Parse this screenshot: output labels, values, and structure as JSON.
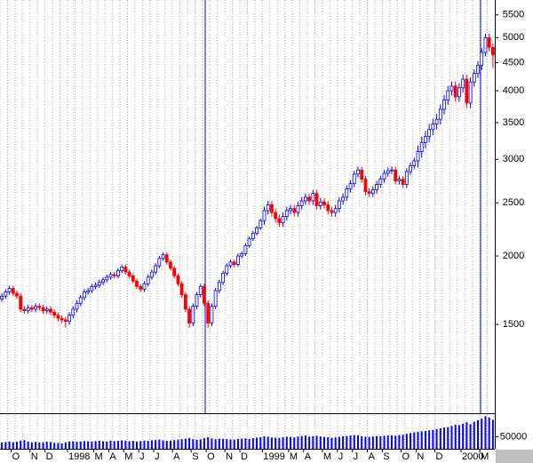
{
  "chart_data": {
    "type": "candlestick",
    "log_scale": true,
    "up_color": "#0000ff",
    "down_color": "#ff0000",
    "volume_color": "#0000ff",
    "categories": [
      null,
      null,
      null,
      "O",
      null,
      null,
      null,
      null,
      "N",
      null,
      null,
      null,
      "D",
      null,
      null,
      null,
      null,
      null,
      "1998",
      null,
      null,
      null,
      null,
      null,
      null,
      "M",
      null,
      null,
      null,
      "A",
      null,
      null,
      null,
      "M",
      null,
      null,
      null,
      "J",
      null,
      null,
      null,
      "J",
      null,
      null,
      null,
      null,
      "A",
      null,
      null,
      null,
      null,
      "S",
      null,
      null,
      null,
      "O",
      null,
      null,
      null,
      null,
      "N",
      null,
      null,
      null,
      "D",
      null,
      null,
      null,
      null,
      null,
      "1999",
      null,
      null,
      null,
      null,
      null,
      null,
      "M",
      null,
      null,
      null,
      "A",
      null,
      null,
      null,
      null,
      "M",
      null,
      null,
      null,
      "J",
      null,
      null,
      null,
      "J",
      null,
      null,
      null,
      "A",
      null,
      null,
      null,
      "S",
      null,
      null,
      null,
      null,
      "O",
      null,
      null,
      null,
      "N",
      null,
      null,
      null,
      null,
      "D",
      null,
      null,
      null,
      null,
      null,
      null,
      "2000",
      null,
      null,
      null,
      null,
      "M",
      null,
      null,
      null
    ],
    "open": [
      1670,
      1690,
      1720,
      1745,
      1710,
      1690,
      1600,
      1590,
      1610,
      1600,
      1620,
      1610,
      1590,
      1600,
      1580,
      1560,
      1540,
      1530,
      1520,
      1560,
      1600,
      1640,
      1680,
      1720,
      1730,
      1760,
      1770,
      1790,
      1810,
      1830,
      1850,
      1840,
      1880,
      1910,
      1870,
      1840,
      1800,
      1760,
      1740,
      1780,
      1830,
      1870,
      1920,
      1980,
      2010,
      1950,
      1900,
      1840,
      1780,
      1700,
      1600,
      1510,
      1620,
      1700,
      1760,
      1640,
      1510,
      1620,
      1730,
      1790,
      1860,
      1920,
      1950,
      1930,
      2000,
      2020,
      2090,
      2150,
      2200,
      2250,
      2320,
      2420,
      2480,
      2400,
      2340,
      2300,
      2360,
      2420,
      2440,
      2400,
      2470,
      2520,
      2560,
      2520,
      2600,
      2470,
      2510,
      2480,
      2420,
      2400,
      2440,
      2520,
      2560,
      2650,
      2710,
      2820,
      2870,
      2760,
      2620,
      2600,
      2640,
      2700,
      2760,
      2830,
      2860,
      2870,
      2740,
      2760,
      2700,
      2850,
      2920,
      2980,
      3100,
      3220,
      3300,
      3400,
      3480,
      3550,
      3700,
      3850,
      4000,
      4080,
      3900,
      4050,
      4200,
      3800,
      4150,
      4300,
      4450,
      4700,
      5000,
      4800
    ],
    "high": [
      1710,
      1740,
      1765,
      1765,
      1730,
      1710,
      1620,
      1630,
      1630,
      1640,
      1640,
      1630,
      1620,
      1620,
      1600,
      1580,
      1560,
      1550,
      1580,
      1620,
      1660,
      1700,
      1740,
      1750,
      1780,
      1790,
      1810,
      1830,
      1850,
      1870,
      1870,
      1900,
      1930,
      1930,
      1890,
      1860,
      1820,
      1780,
      1800,
      1850,
      1890,
      1940,
      2000,
      2030,
      2030,
      1970,
      1920,
      1860,
      1800,
      1720,
      1620,
      1640,
      1720,
      1780,
      1780,
      1660,
      1640,
      1750,
      1810,
      1880,
      1940,
      1970,
      1970,
      2020,
      2040,
      2110,
      2170,
      2220,
      2270,
      2340,
      2460,
      2520,
      2520,
      2440,
      2380,
      2400,
      2460,
      2480,
      2480,
      2510,
      2560,
      2600,
      2600,
      2640,
      2640,
      2550,
      2550,
      2520,
      2460,
      2480,
      2560,
      2600,
      2690,
      2750,
      2860,
      2910,
      2910,
      2800,
      2660,
      2680,
      2740,
      2800,
      2870,
      2900,
      2910,
      2910,
      2800,
      2800,
      2890,
      2960,
      3020,
      3180,
      3300,
      3380,
      3480,
      3560,
      3630,
      3780,
      3930,
      4080,
      4160,
      4160,
      4130,
      4280,
      4280,
      4230,
      4380,
      4530,
      4780,
      5080,
      5080,
      4880
    ],
    "low": [
      1650,
      1670,
      1700,
      1690,
      1670,
      1580,
      1570,
      1570,
      1580,
      1580,
      1590,
      1570,
      1570,
      1560,
      1540,
      1520,
      1510,
      1480,
      1500,
      1540,
      1580,
      1620,
      1660,
      1700,
      1710,
      1740,
      1750,
      1770,
      1790,
      1810,
      1820,
      1820,
      1860,
      1850,
      1820,
      1780,
      1740,
      1720,
      1720,
      1760,
      1810,
      1850,
      1900,
      1960,
      1930,
      1880,
      1820,
      1760,
      1680,
      1580,
      1480,
      1490,
      1600,
      1680,
      1620,
      1480,
      1490,
      1600,
      1710,
      1770,
      1840,
      1900,
      1910,
      1910,
      1980,
      2000,
      2070,
      2130,
      2180,
      2230,
      2280,
      2380,
      2360,
      2300,
      2260,
      2260,
      2320,
      2380,
      2360,
      2360,
      2430,
      2480,
      2480,
      2480,
      2430,
      2430,
      2440,
      2380,
      2360,
      2360,
      2400,
      2480,
      2520,
      2610,
      2670,
      2780,
      2720,
      2580,
      2560,
      2560,
      2600,
      2660,
      2720,
      2790,
      2820,
      2700,
      2700,
      2660,
      2660,
      2810,
      2880,
      2900,
      3020,
      3140,
      3220,
      3320,
      3400,
      3470,
      3620,
      3770,
      3920,
      3820,
      3820,
      3970,
      3720,
      3720,
      4070,
      4220,
      4370,
      4620,
      4720,
      4400
    ],
    "close": [
      1690,
      1720,
      1745,
      1710,
      1690,
      1600,
      1590,
      1610,
      1600,
      1620,
      1610,
      1590,
      1600,
      1580,
      1560,
      1540,
      1530,
      1520,
      1560,
      1600,
      1640,
      1680,
      1720,
      1730,
      1760,
      1770,
      1790,
      1810,
      1830,
      1850,
      1840,
      1880,
      1910,
      1870,
      1840,
      1800,
      1760,
      1740,
      1780,
      1830,
      1870,
      1920,
      1980,
      2010,
      1950,
      1900,
      1840,
      1780,
      1700,
      1600,
      1510,
      1620,
      1700,
      1760,
      1640,
      1510,
      1620,
      1730,
      1790,
      1860,
      1920,
      1950,
      1930,
      2000,
      2020,
      2090,
      2150,
      2200,
      2250,
      2320,
      2420,
      2480,
      2400,
      2340,
      2300,
      2360,
      2420,
      2440,
      2400,
      2470,
      2520,
      2560,
      2520,
      2600,
      2470,
      2510,
      2480,
      2420,
      2400,
      2440,
      2520,
      2560,
      2650,
      2710,
      2820,
      2870,
      2760,
      2620,
      2600,
      2640,
      2700,
      2760,
      2830,
      2860,
      2870,
      2740,
      2760,
      2700,
      2850,
      2920,
      2980,
      3100,
      3220,
      3300,
      3400,
      3480,
      3550,
      3700,
      3850,
      4000,
      4080,
      3900,
      4050,
      4200,
      3800,
      4150,
      4300,
      4450,
      4700,
      5000,
      4800,
      4650
    ],
    "volume": [
      26000,
      28000,
      30000,
      27000,
      29000,
      34000,
      36000,
      30000,
      27000,
      28000,
      26000,
      27000,
      29000,
      28000,
      25000,
      24000,
      22000,
      27000,
      30000,
      31000,
      29000,
      30000,
      32000,
      31000,
      30000,
      32000,
      33000,
      31000,
      30000,
      34000,
      32000,
      33000,
      35000,
      34000,
      31000,
      33000,
      30000,
      32000,
      34000,
      33000,
      35000,
      36000,
      38000,
      35000,
      33000,
      34000,
      36000,
      38000,
      40000,
      42000,
      45000,
      40000,
      38000,
      39000,
      44000,
      48000,
      43000,
      40000,
      42000,
      41000,
      40000,
      39000,
      38000,
      41000,
      42000,
      43000,
      40000,
      44000,
      46000,
      48000,
      52000,
      50000,
      47000,
      46000,
      45000,
      48000,
      50000,
      49000,
      47000,
      51000,
      53000,
      55000,
      50000,
      52000,
      54000,
      51000,
      49000,
      48000,
      46000,
      47000,
      50000,
      52000,
      53000,
      55000,
      57000,
      56000,
      52000,
      50000,
      49000,
      51000,
      53000,
      52000,
      54000,
      55000,
      56000,
      54000,
      57000,
      58000,
      62000,
      65000,
      68000,
      70000,
      72000,
      74000,
      76000,
      78000,
      82000,
      85000,
      88000,
      90000,
      95000,
      100000,
      98000,
      104000,
      110000,
      102000,
      112000,
      118000,
      125000,
      135000,
      130000,
      120000
    ],
    "ylim": [
      1034,
      5854
    ],
    "yticks": [
      1500,
      2000,
      2500,
      3000,
      3500,
      4000,
      4500,
      5000,
      5500
    ],
    "volume_ylim": [
      0,
      140000
    ],
    "volume_yticks": [
      50000
    ]
  }
}
